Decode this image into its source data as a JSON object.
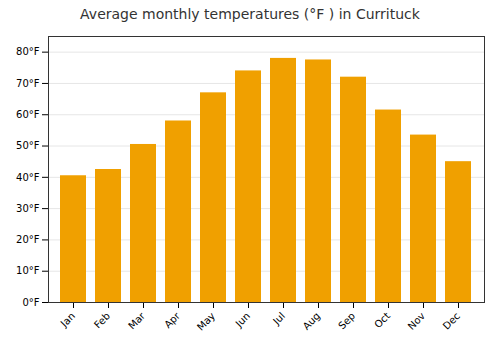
{
  "chart_data": {
    "type": "bar",
    "title": "Average monthly temperatures (°F ) in Currituck",
    "categories": [
      "Jan",
      "Feb",
      "Mar",
      "Apr",
      "May",
      "Jun",
      "Jul",
      "Aug",
      "Sep",
      "Oct",
      "Nov",
      "Dec"
    ],
    "values": [
      40.5,
      42.5,
      50.5,
      58.0,
      67.0,
      74.0,
      78.0,
      77.5,
      72.0,
      61.5,
      53.5,
      45.0
    ],
    "color": "#F0A000",
    "ylim": [
      0,
      85
    ],
    "yticks": [
      {
        "value": 0,
        "label": "0°F"
      },
      {
        "value": 10,
        "label": "10°F"
      },
      {
        "value": 20,
        "label": "20°F"
      },
      {
        "value": 30,
        "label": "30°F"
      },
      {
        "value": 40,
        "label": "40°F"
      },
      {
        "value": 50,
        "label": "50°F"
      },
      {
        "value": 60,
        "label": "60°F"
      },
      {
        "value": 70,
        "label": "70°F"
      },
      {
        "value": 80,
        "label": "80°F"
      }
    ],
    "grid": true
  }
}
